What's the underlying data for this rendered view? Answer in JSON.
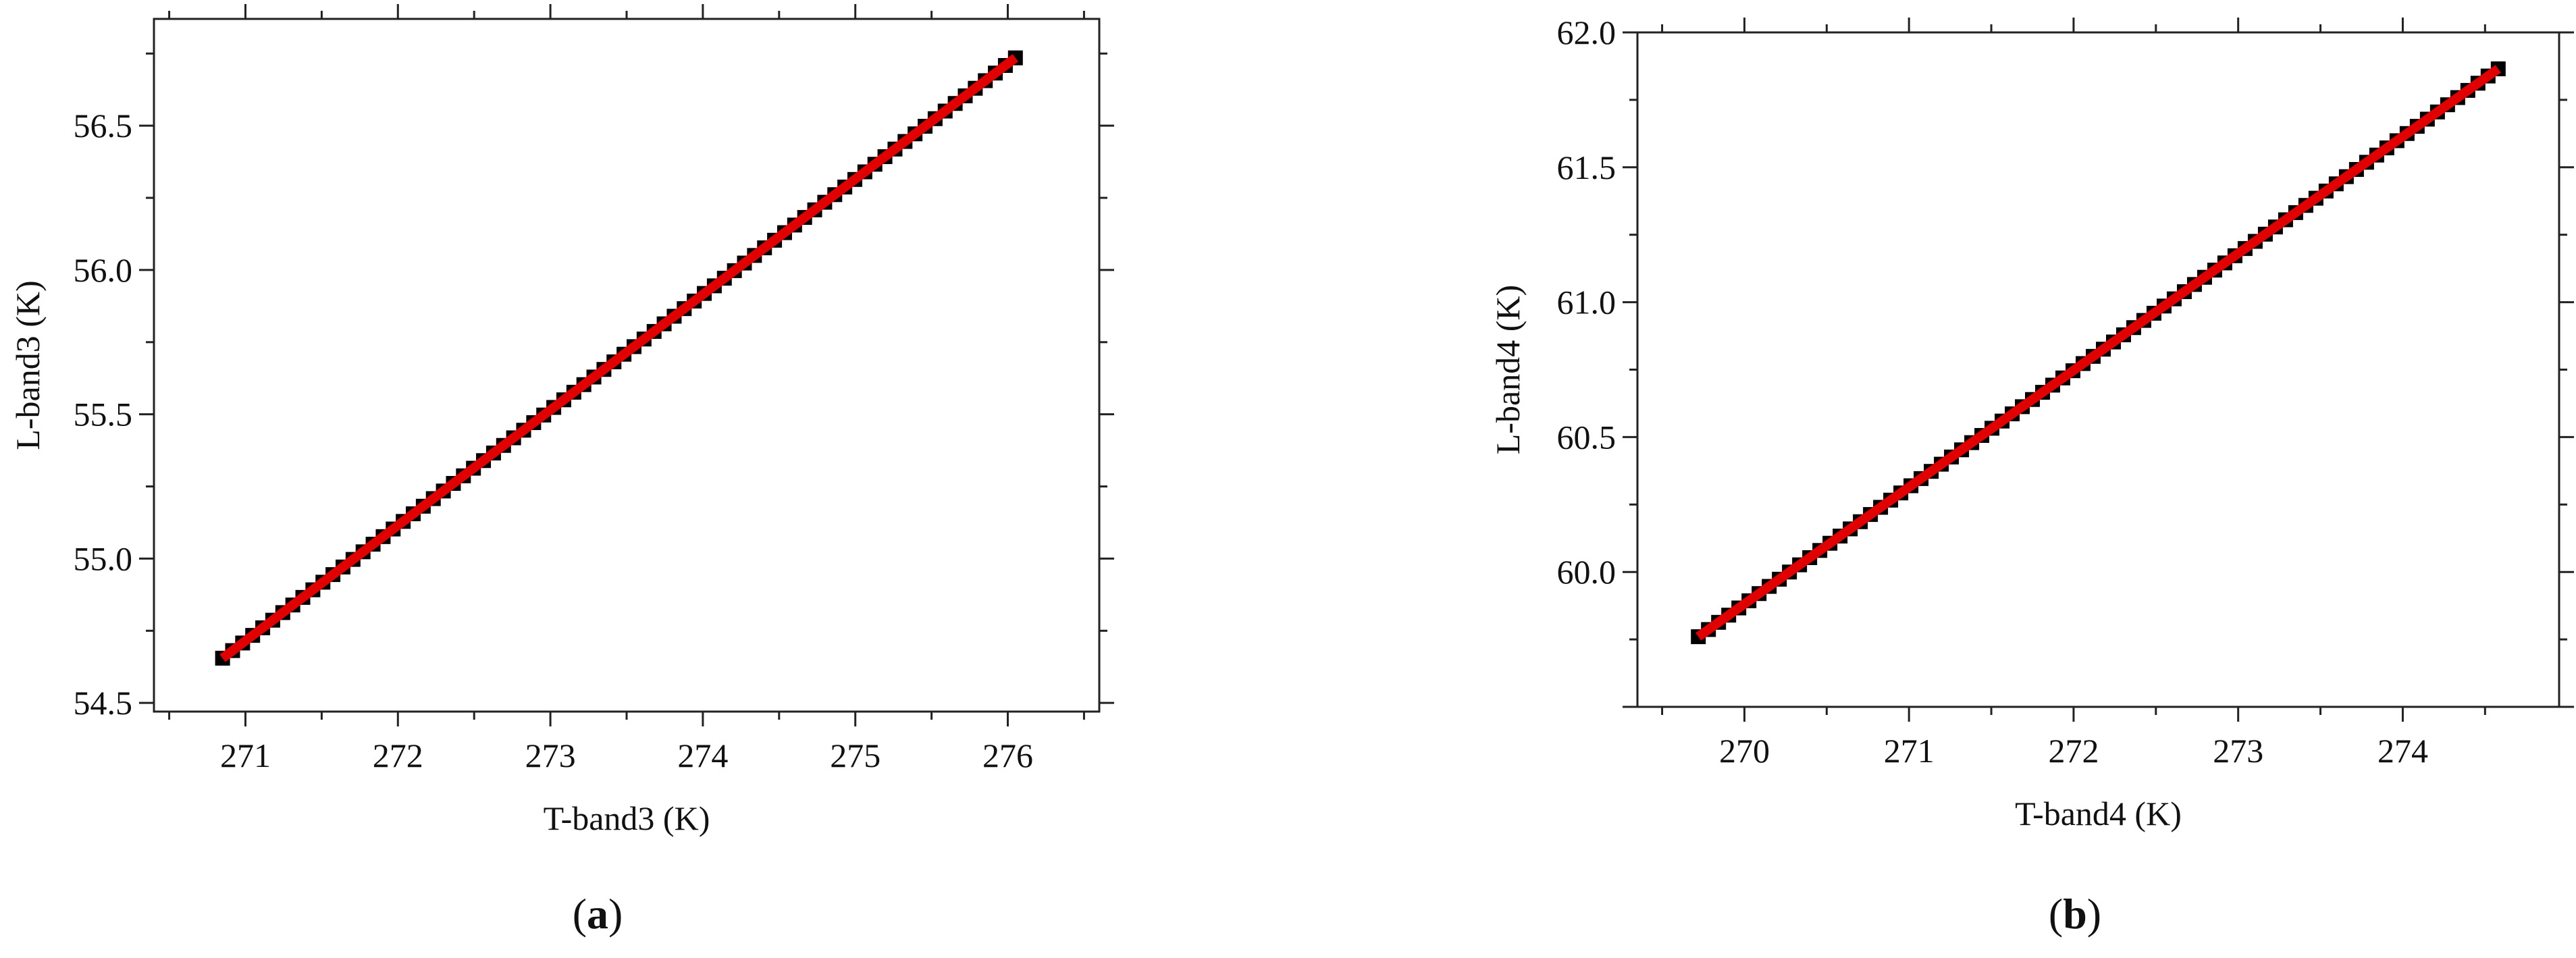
{
  "chart_data": [
    {
      "type": "scatter",
      "panel_label": "a",
      "xlabel": "T-band3 (K)",
      "ylabel": "L-band3 (K)",
      "xlim": [
        270.4,
        276.6
      ],
      "ylim": [
        54.47,
        56.87
      ],
      "xticks": [
        "271",
        "272",
        "273",
        "274",
        "275",
        "276"
      ],
      "yticks": [
        "54.5",
        "55.0",
        "55.5",
        "56.0",
        "56.5"
      ],
      "series": [
        {
          "kind": "points",
          "marker": "square",
          "color": "#000000",
          "x_start": 270.85,
          "x_end": 276.05,
          "y_start": 54.655,
          "y_end": 56.735,
          "count": 80
        },
        {
          "kind": "fit-line",
          "color": "#e00000",
          "x": [
            270.85,
            276.05
          ],
          "y": [
            54.655,
            56.735
          ]
        }
      ]
    },
    {
      "type": "scatter",
      "panel_label": "b",
      "xlabel": "T-band4 (K)",
      "ylabel": "L-band4 (K)",
      "xlim": [
        269.35,
        274.95
      ],
      "ylim": [
        59.5,
        62.0
      ],
      "xticks": [
        "270",
        "271",
        "272",
        "273",
        "274"
      ],
      "yticks": [
        "60.0",
        "60.5",
        "61.0",
        "61.5",
        "62.0"
      ],
      "series": [
        {
          "kind": "points",
          "marker": "square",
          "color": "#000000",
          "x_start": 269.72,
          "x_end": 274.58,
          "y_start": 59.76,
          "y_end": 61.865,
          "count": 80
        },
        {
          "kind": "fit-line",
          "color": "#e00000",
          "x": [
            269.72,
            274.58
          ],
          "y": [
            59.76,
            61.865
          ]
        }
      ]
    }
  ]
}
